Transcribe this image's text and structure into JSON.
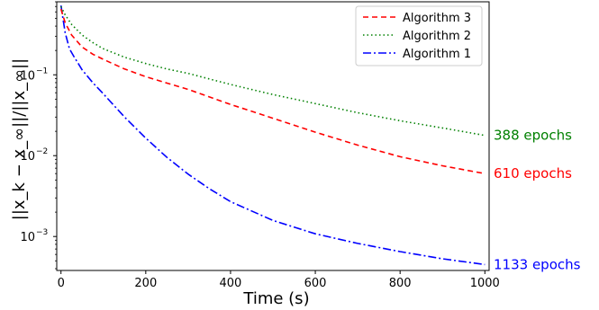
{
  "chart_data": {
    "type": "line",
    "xlabel": "Time (s)",
    "ylabel": "||x_k − x_∞||/||x_∞||",
    "xlim": [
      -10,
      1010
    ],
    "ylim": [
      0.00038,
      0.8
    ],
    "yscale": "log",
    "grid": false,
    "legend_position": "top-right",
    "x_ticks": [
      0,
      200,
      400,
      600,
      800,
      1000
    ],
    "y_ticks": [
      {
        "value": 0.1,
        "base": "10",
        "exp": "−1"
      },
      {
        "value": 0.01,
        "base": "10",
        "exp": "−2"
      },
      {
        "value": 0.001,
        "base": "10",
        "exp": "−3"
      }
    ],
    "series": [
      {
        "name": "Algorithm 3",
        "color": "#ff0000",
        "dash": "6,4",
        "x": [
          0,
          10,
          25,
          50,
          75,
          100,
          150,
          200,
          250,
          300,
          400,
          500,
          600,
          700,
          800,
          900,
          1000
        ],
        "y": [
          0.65,
          0.44,
          0.31,
          0.22,
          0.18,
          0.155,
          0.118,
          0.095,
          0.079,
          0.066,
          0.043,
          0.029,
          0.0195,
          0.0135,
          0.0097,
          0.0075,
          0.006
        ],
        "annotation": "610 epochs"
      },
      {
        "name": "Algorithm 2",
        "color": "#008000",
        "dash": "1.5,3",
        "x": [
          0,
          10,
          25,
          50,
          75,
          100,
          150,
          200,
          250,
          300,
          400,
          500,
          600,
          700,
          800,
          900,
          1000
        ],
        "y": [
          0.7,
          0.55,
          0.42,
          0.31,
          0.25,
          0.21,
          0.165,
          0.138,
          0.118,
          0.104,
          0.076,
          0.057,
          0.044,
          0.034,
          0.027,
          0.022,
          0.0178
        ],
        "annotation": "388 epochs"
      },
      {
        "name": "Algorithm 1",
        "color": "#0000ff",
        "dash": "9,3,2,3",
        "x": [
          0,
          5,
          10,
          20,
          30,
          40,
          50,
          75,
          100,
          150,
          200,
          250,
          300,
          350,
          400,
          500,
          600,
          700,
          800,
          900,
          1000
        ],
        "y": [
          0.72,
          0.48,
          0.33,
          0.21,
          0.17,
          0.14,
          0.115,
          0.08,
          0.058,
          0.03,
          0.0165,
          0.0095,
          0.0059,
          0.0039,
          0.0027,
          0.00158,
          0.00108,
          0.00082,
          0.00065,
          0.00053,
          0.00045
        ],
        "annotation": "1133 epochs"
      }
    ]
  }
}
